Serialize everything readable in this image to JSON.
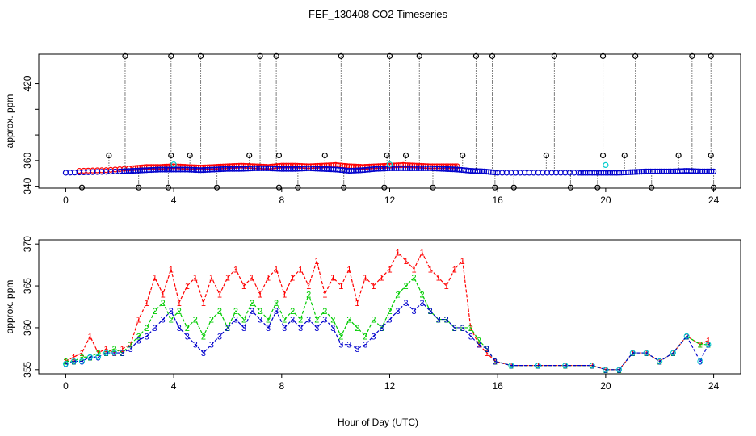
{
  "figure_title": "FEF_130408  CO2 Timeseries",
  "shared_xlabel": "Hour of Day (UTC)",
  "colors": {
    "series1": "#ff0000",
    "series2": "#00cc00",
    "series3": "#0000cc",
    "cyan": "#00cccc",
    "black": "#000000"
  },
  "chart_data": [
    {
      "type": "scatter",
      "panel": "top",
      "title": "FEF_130408  CO2 Timeseries",
      "xlabel": "",
      "ylabel": "approx. ppm",
      "xlim": [
        -1,
        25
      ],
      "ylim": [
        338.5,
        443
      ],
      "xticks": [
        0,
        4,
        8,
        12,
        16,
        20,
        24
      ],
      "yticks": [
        340,
        360,
        380,
        400,
        420
      ],
      "ytick_labels": [
        "340",
        "360",
        "",
        "",
        "420"
      ],
      "grid": false,
      "series": [
        {
          "name": "red",
          "marker": "o",
          "x": [
            0.5,
            1.5,
            2.5,
            3.0,
            3.5,
            4.0,
            4.5,
            5.0,
            5.5,
            6.0,
            6.5,
            7.0,
            7.5,
            8.0,
            8.5,
            9.0,
            9.5,
            10.0,
            10.5,
            11.0,
            11.5,
            12.0,
            12.5,
            13.0,
            13.5,
            14.0,
            14.5
          ],
          "y": [
            352,
            352.5,
            354,
            355,
            355,
            355.5,
            355,
            354.5,
            355,
            355.5,
            356,
            355.5,
            355,
            356,
            356,
            355.5,
            356,
            356.5,
            355.5,
            355,
            355.5,
            356,
            356.5,
            356,
            355.5,
            355.5,
            355.5
          ]
        },
        {
          "name": "blue",
          "marker": "o",
          "x": [
            0,
            1,
            2,
            2.5,
            3,
            3.5,
            4,
            4.5,
            5,
            5.5,
            6,
            6.5,
            7,
            7.5,
            8,
            8.5,
            9,
            9.5,
            10,
            10.5,
            11,
            11.5,
            12,
            12.5,
            13,
            13.5,
            14,
            14.5,
            15,
            15.5,
            16,
            17,
            18,
            19,
            19.5,
            20,
            20.5,
            21,
            21.5,
            22,
            22.5,
            23,
            23.5,
            24
          ],
          "y": [
            350.5,
            351,
            351.5,
            352,
            352.5,
            353,
            353,
            353,
            352.5,
            353,
            353.5,
            353.5,
            354,
            354,
            353.5,
            353.5,
            354,
            353.5,
            353,
            352,
            352.5,
            353.5,
            354,
            354,
            354,
            354,
            353.5,
            353,
            352,
            351.5,
            350.5,
            350.5,
            350.5,
            350.5,
            350.5,
            350.5,
            350.5,
            351,
            351.5,
            351.5,
            351.5,
            352,
            351.5,
            351.5
          ]
        },
        {
          "name": "cyan",
          "marker": "o",
          "x": [
            4.0,
            12.0,
            20.0
          ],
          "y": [
            357,
            357,
            356.5
          ]
        }
      ],
      "spikes": {
        "x": [
          2.2,
          3.9,
          5.0,
          7.2,
          7.8,
          10.2,
          12.0,
          13.1,
          15.2,
          15.8,
          18.1,
          19.9,
          21.1,
          23.2,
          23.9
        ],
        "top": [
          441.5,
          441.5,
          441.5,
          441.5,
          441.5,
          441.5,
          441.5,
          441.5,
          441.5,
          441.5,
          441.5,
          441.5,
          441.5,
          441.5,
          441.5
        ],
        "mid_x": [
          1.6,
          3.9,
          4.6,
          6.8,
          7.9,
          9.6,
          11.9,
          12.6,
          14.7,
          17.8,
          19.9,
          20.7,
          22.7,
          23.9
        ],
        "mid": [
          364,
          364,
          364,
          364,
          364,
          364,
          364,
          364,
          364,
          364,
          364,
          364,
          364,
          364
        ],
        "low_x": [
          0.6,
          2.7,
          3.8,
          5.6,
          7.9,
          8.6,
          10.3,
          11.8,
          13.6,
          15.9,
          16.6,
          18.7,
          19.7,
          21.7,
          24.0
        ],
        "low": [
          339,
          339,
          339,
          339,
          339,
          339,
          339,
          339,
          339,
          339,
          339,
          339,
          339,
          339,
          339
        ]
      }
    },
    {
      "type": "line",
      "panel": "bottom",
      "title": "",
      "xlabel": "Hour of Day (UTC)",
      "ylabel": "approx. ppm",
      "xlim": [
        -1,
        25
      ],
      "ylim": [
        354.5,
        370.5
      ],
      "xticks": [
        0,
        4,
        8,
        12,
        16,
        20,
        24
      ],
      "yticks": [
        355,
        360,
        365,
        370
      ],
      "grid": false,
      "series": [
        {
          "name": "1",
          "color": "#ff0000",
          "x": [
            0,
            0.3,
            0.6,
            0.9,
            1.2,
            1.5,
            1.8,
            2.1,
            2.4,
            2.7,
            3.0,
            3.3,
            3.6,
            3.9,
            4.2,
            4.5,
            4.8,
            5.1,
            5.4,
            5.7,
            6.0,
            6.3,
            6.6,
            6.9,
            7.2,
            7.5,
            7.8,
            8.1,
            8.4,
            8.7,
            9.0,
            9.3,
            9.6,
            9.9,
            10.2,
            10.5,
            10.8,
            11.1,
            11.4,
            11.7,
            12.0,
            12.3,
            12.6,
            12.9,
            13.2,
            13.5,
            13.8,
            14.1,
            14.4,
            14.7,
            15.0,
            15.3,
            15.6,
            15.9,
            16.5,
            17.5,
            18.5,
            19.5,
            20.0,
            20.5,
            21.0,
            21.5,
            22.0,
            22.5,
            23.0,
            23.5,
            23.8
          ],
          "y": [
            356,
            356.5,
            357,
            359,
            357,
            357.5,
            357,
            357.5,
            358,
            361,
            363,
            366,
            364,
            367,
            363,
            365,
            366,
            363,
            366,
            364,
            366,
            367,
            365,
            366,
            364,
            366,
            367,
            364,
            366,
            367,
            365,
            368,
            364,
            366,
            365,
            367,
            363,
            366,
            365,
            366,
            367,
            369,
            368,
            367,
            369,
            367,
            366,
            365,
            367,
            368,
            360,
            358,
            357,
            356,
            355.5,
            355.5,
            355.5,
            355.5,
            355,
            355,
            357,
            357,
            356,
            357,
            359,
            358,
            358.5
          ]
        },
        {
          "name": "2",
          "color": "#00cc00",
          "x": [
            0,
            0.3,
            0.6,
            0.9,
            1.2,
            1.5,
            1.8,
            2.1,
            2.4,
            2.7,
            3.0,
            3.3,
            3.6,
            3.9,
            4.2,
            4.5,
            4.8,
            5.1,
            5.4,
            5.7,
            6.0,
            6.3,
            6.6,
            6.9,
            7.2,
            7.5,
            7.8,
            8.1,
            8.4,
            8.7,
            9.0,
            9.3,
            9.6,
            9.9,
            10.2,
            10.5,
            10.8,
            11.1,
            11.4,
            11.7,
            12.0,
            12.3,
            12.6,
            12.9,
            13.2,
            13.5,
            13.8,
            14.1,
            14.4,
            14.7,
            15.0,
            15.3,
            15.6,
            15.9,
            16.5,
            17.5,
            18.5,
            19.5,
            20.0,
            20.5,
            21.0,
            21.5,
            22.0,
            22.5,
            23.0,
            23.5,
            23.8
          ],
          "y": [
            356,
            356,
            356.5,
            356.5,
            357,
            357,
            357.5,
            357,
            358,
            359,
            360,
            362,
            363,
            361,
            362,
            360,
            361,
            359,
            361,
            362,
            360,
            362,
            361,
            363,
            362,
            361,
            363,
            361,
            362,
            361,
            364,
            361,
            362,
            361,
            359,
            361,
            360,
            359,
            361,
            360,
            362,
            364,
            365,
            366,
            364,
            362,
            361,
            361,
            360,
            360,
            360,
            358.5,
            357.5,
            356,
            355.5,
            355.5,
            355.5,
            355.5,
            355,
            355,
            357,
            357,
            356,
            357,
            359,
            358,
            358
          ]
        },
        {
          "name": "3",
          "color": "#0000cc",
          "x": [
            0,
            0.3,
            0.6,
            0.9,
            1.2,
            1.5,
            1.8,
            2.1,
            2.4,
            2.7,
            3.0,
            3.3,
            3.6,
            3.9,
            4.2,
            4.5,
            4.8,
            5.1,
            5.4,
            5.7,
            6.0,
            6.3,
            6.6,
            6.9,
            7.2,
            7.5,
            7.8,
            8.1,
            8.4,
            8.7,
            9.0,
            9.3,
            9.6,
            9.9,
            10.2,
            10.5,
            10.8,
            11.1,
            11.4,
            11.7,
            12.0,
            12.3,
            12.6,
            12.9,
            13.2,
            13.5,
            13.8,
            14.1,
            14.4,
            14.7,
            15.0,
            15.3,
            15.6,
            15.9,
            16.5,
            17.5,
            18.5,
            19.5,
            20.0,
            20.5,
            21.0,
            21.5,
            22.0,
            22.5,
            23.0,
            23.5,
            23.8
          ],
          "y": [
            355.7,
            356,
            356,
            356.5,
            356.5,
            357,
            357,
            357,
            357.5,
            358.5,
            359,
            360,
            361,
            362,
            360,
            359,
            358,
            357,
            358,
            359,
            360,
            361,
            360,
            362,
            361,
            360,
            362,
            360,
            361,
            360,
            361,
            360,
            361,
            360,
            358,
            358,
            357.5,
            358,
            359,
            360,
            361,
            362,
            363,
            362,
            363,
            362,
            361,
            361,
            360,
            360,
            359,
            358,
            357.5,
            356,
            355.5,
            355.5,
            355.5,
            355.5,
            355,
            355,
            357,
            357,
            356,
            357,
            359,
            356,
            358
          ]
        }
      ]
    }
  ]
}
